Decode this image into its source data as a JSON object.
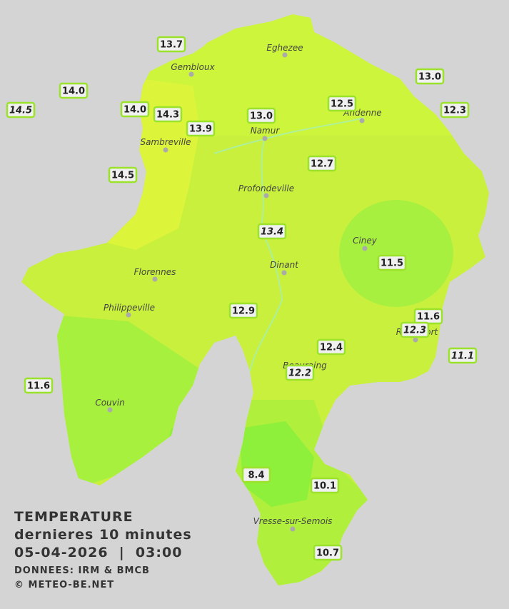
{
  "title": "TEMPERATURE",
  "subtitle": "dernieres 10 minutes",
  "timestamp": "05-04-2026  |  03:00",
  "source": "DONNEES: IRM & BMCB",
  "copyright": "© METEO-BE.NET",
  "cities": [
    "Eghezee",
    "Gembloux",
    "Andenne",
    "Namur",
    "Sambreville",
    "Profondeville",
    "Ciney",
    "Dinant",
    "Florennes",
    "Philippeville",
    "Rochefort",
    "Beauraing",
    "Couvin",
    "Vresse-sur-Semois"
  ],
  "stations": [
    {
      "label": "13.7",
      "italic": false
    },
    {
      "label": "14.0",
      "italic": false
    },
    {
      "label": "14.5",
      "italic": true
    },
    {
      "label": "14.0",
      "italic": false
    },
    {
      "label": "14.3",
      "italic": false
    },
    {
      "label": "13.9",
      "italic": false
    },
    {
      "label": "13.0",
      "italic": false
    },
    {
      "label": "12.5",
      "italic": false
    },
    {
      "label": "13.0",
      "italic": false
    },
    {
      "label": "12.3",
      "italic": false
    },
    {
      "label": "14.5",
      "italic": false
    },
    {
      "label": "12.7",
      "italic": false
    },
    {
      "label": "13.4",
      "italic": true
    },
    {
      "label": "11.5",
      "italic": false
    },
    {
      "label": "12.9",
      "italic": false
    },
    {
      "label": "11.6",
      "italic": false
    },
    {
      "label": "12.3",
      "italic": true
    },
    {
      "label": "12.4",
      "italic": false
    },
    {
      "label": "12.2",
      "italic": true
    },
    {
      "label": "11.1",
      "italic": true
    },
    {
      "label": "11.6",
      "italic": false
    },
    {
      "label": "8.4",
      "italic": false
    },
    {
      "label": "10.1",
      "italic": false
    },
    {
      "label": "10.7",
      "italic": false
    }
  ]
}
